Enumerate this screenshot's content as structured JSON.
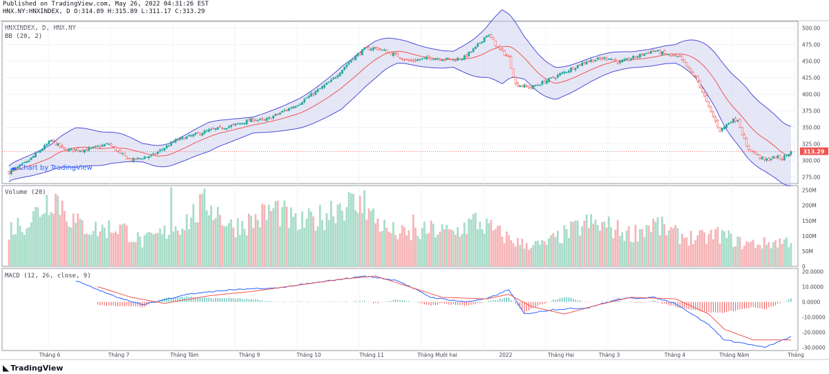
{
  "header": {
    "published": "Published on TradingView.com, May 26, 2022 04:31:26 EST",
    "ohlc": "HNX.NY:HNXINDEX, D O:314.89 H:315.89 L:311.17 C:313.29"
  },
  "legends": {
    "symbol": "HNXINDEX, D, HNX.NY",
    "bb": "BB (20, 2)",
    "volume": "Volume (20)",
    "macd": "MACD (12, 26, close, 9)"
  },
  "watermark": "Chart by TradingView",
  "footer_brand": "TradingView",
  "colors": {
    "up": "#26a69a",
    "down": "#ef5350",
    "bb_line": "#4b4bd6",
    "bb_fill": "#d1d4ee",
    "macd": "#2962ff",
    "signal": "#ef5350",
    "last_price_bg": "#ef5350"
  },
  "chart_data": {
    "type": "candlestick",
    "title": "HNXINDEX, D, HNX.NY",
    "last_price": 313.29,
    "last_price_label": "313.29",
    "x_labels": [
      "Tháng 6",
      "Tháng 7",
      "Tháng Tám",
      "Tháng 9",
      "Tháng 10",
      "Tháng 11",
      "Tháng Mười hai",
      "2022",
      "Tháng Hai",
      "Tháng 3",
      "Tháng 4",
      "Tháng Năm",
      "Tháng"
    ],
    "price_axis": {
      "ticks": [
        "275.00",
        "300.00",
        "325.00",
        "350.00",
        "375.00",
        "400.00",
        "425.00",
        "450.00",
        "475.00",
        "500.00"
      ],
      "range": [
        265,
        510
      ]
    },
    "volume_axis": {
      "ticks": [
        "0",
        "50M",
        "100M",
        "150M",
        "200M",
        "250M"
      ],
      "range": [
        0,
        265
      ]
    },
    "macd_axis": {
      "ticks": [
        "-30.0000",
        "-20.0000",
        "-10.0000",
        "0.0000",
        "10.0000",
        "20.0000"
      ],
      "range": [
        -32,
        22
      ]
    },
    "close_keypoints": [
      [
        0,
        282
      ],
      [
        8,
        297
      ],
      [
        15,
        318
      ],
      [
        19,
        330
      ],
      [
        25,
        316
      ],
      [
        35,
        316
      ],
      [
        45,
        325
      ],
      [
        50,
        310
      ],
      [
        55,
        300
      ],
      [
        65,
        308
      ],
      [
        75,
        330
      ],
      [
        90,
        345
      ],
      [
        100,
        352
      ],
      [
        110,
        362
      ],
      [
        115,
        360
      ],
      [
        130,
        385
      ],
      [
        145,
        420
      ],
      [
        155,
        455
      ],
      [
        160,
        468
      ],
      [
        165,
        470
      ],
      [
        175,
        458
      ],
      [
        180,
        450
      ],
      [
        190,
        455
      ],
      [
        200,
        452
      ],
      [
        205,
        456
      ],
      [
        210,
        470
      ],
      [
        215,
        490
      ],
      [
        217,
        485
      ],
      [
        220,
        470
      ],
      [
        225,
        455
      ],
      [
        228,
        415
      ],
      [
        235,
        410
      ],
      [
        245,
        425
      ],
      [
        260,
        450
      ],
      [
        270,
        455
      ],
      [
        275,
        448
      ],
      [
        290,
        466
      ],
      [
        298,
        458
      ],
      [
        302,
        455
      ],
      [
        310,
        420
      ],
      [
        315,
        380
      ],
      [
        320,
        345
      ],
      [
        325,
        360
      ],
      [
        328,
        362
      ],
      [
        332,
        320
      ],
      [
        340,
        300
      ],
      [
        345,
        305
      ],
      [
        348,
        303
      ],
      [
        352,
        313.29
      ]
    ],
    "volume_keypoints": [
      [
        0,
        120
      ],
      [
        10,
        155
      ],
      [
        20,
        240
      ],
      [
        30,
        140
      ],
      [
        40,
        120
      ],
      [
        50,
        130
      ],
      [
        60,
        80
      ],
      [
        70,
        110
      ],
      [
        80,
        150
      ],
      [
        90,
        210
      ],
      [
        100,
        130
      ],
      [
        110,
        150
      ],
      [
        120,
        190
      ],
      [
        130,
        135
      ],
      [
        140,
        160
      ],
      [
        150,
        210
      ],
      [
        160,
        190
      ],
      [
        170,
        120
      ],
      [
        180,
        100
      ],
      [
        190,
        120
      ],
      [
        200,
        110
      ],
      [
        210,
        150
      ],
      [
        220,
        110
      ],
      [
        230,
        75
      ],
      [
        240,
        70
      ],
      [
        250,
        105
      ],
      [
        260,
        140
      ],
      [
        270,
        130
      ],
      [
        280,
        105
      ],
      [
        290,
        140
      ],
      [
        300,
        105
      ],
      [
        310,
        90
      ],
      [
        320,
        105
      ],
      [
        330,
        75
      ],
      [
        340,
        75
      ],
      [
        352,
        85
      ]
    ],
    "volume_spikes": [
      [
        73,
        260
      ],
      [
        145,
        215
      ],
      [
        160,
        250
      ],
      [
        182,
        170
      ]
    ],
    "macd_keypoints": [
      [
        30,
        14
      ],
      [
        45,
        5
      ],
      [
        60,
        -2
      ],
      [
        80,
        5
      ],
      [
        100,
        8
      ],
      [
        120,
        9
      ],
      [
        140,
        13
      ],
      [
        160,
        17
      ],
      [
        175,
        14
      ],
      [
        190,
        3
      ],
      [
        205,
        0
      ],
      [
        215,
        2
      ],
      [
        225,
        8
      ],
      [
        232,
        -8
      ],
      [
        245,
        -5
      ],
      [
        260,
        -4
      ],
      [
        275,
        2
      ],
      [
        290,
        3
      ],
      [
        300,
        -1
      ],
      [
        315,
        -15
      ],
      [
        322,
        -25
      ],
      [
        330,
        -27
      ],
      [
        340,
        -30
      ],
      [
        352,
        -23
      ]
    ],
    "signal_keypoints": [
      [
        40,
        10
      ],
      [
        55,
        3
      ],
      [
        70,
        -1
      ],
      [
        90,
        4
      ],
      [
        110,
        7
      ],
      [
        130,
        11
      ],
      [
        150,
        15
      ],
      [
        165,
        17
      ],
      [
        180,
        10
      ],
      [
        195,
        3
      ],
      [
        215,
        2
      ],
      [
        225,
        5
      ],
      [
        235,
        -3
      ],
      [
        250,
        -8
      ],
      [
        265,
        -2
      ],
      [
        280,
        3
      ],
      [
        300,
        2
      ],
      [
        315,
        -8
      ],
      [
        322,
        -18
      ],
      [
        335,
        -25
      ],
      [
        352,
        -25
      ]
    ],
    "bb_width_keypoints": [
      [
        0,
        12
      ],
      [
        20,
        20
      ],
      [
        30,
        30
      ],
      [
        50,
        22
      ],
      [
        60,
        14
      ],
      [
        90,
        22
      ],
      [
        110,
        12
      ],
      [
        130,
        22
      ],
      [
        150,
        32
      ],
      [
        165,
        28
      ],
      [
        175,
        18
      ],
      [
        200,
        12
      ],
      [
        215,
        38
      ],
      [
        222,
        56
      ],
      [
        232,
        32
      ],
      [
        250,
        22
      ],
      [
        280,
        12
      ],
      [
        300,
        14
      ],
      [
        315,
        38
      ],
      [
        322,
        46
      ],
      [
        332,
        52
      ],
      [
        352,
        45
      ]
    ]
  }
}
